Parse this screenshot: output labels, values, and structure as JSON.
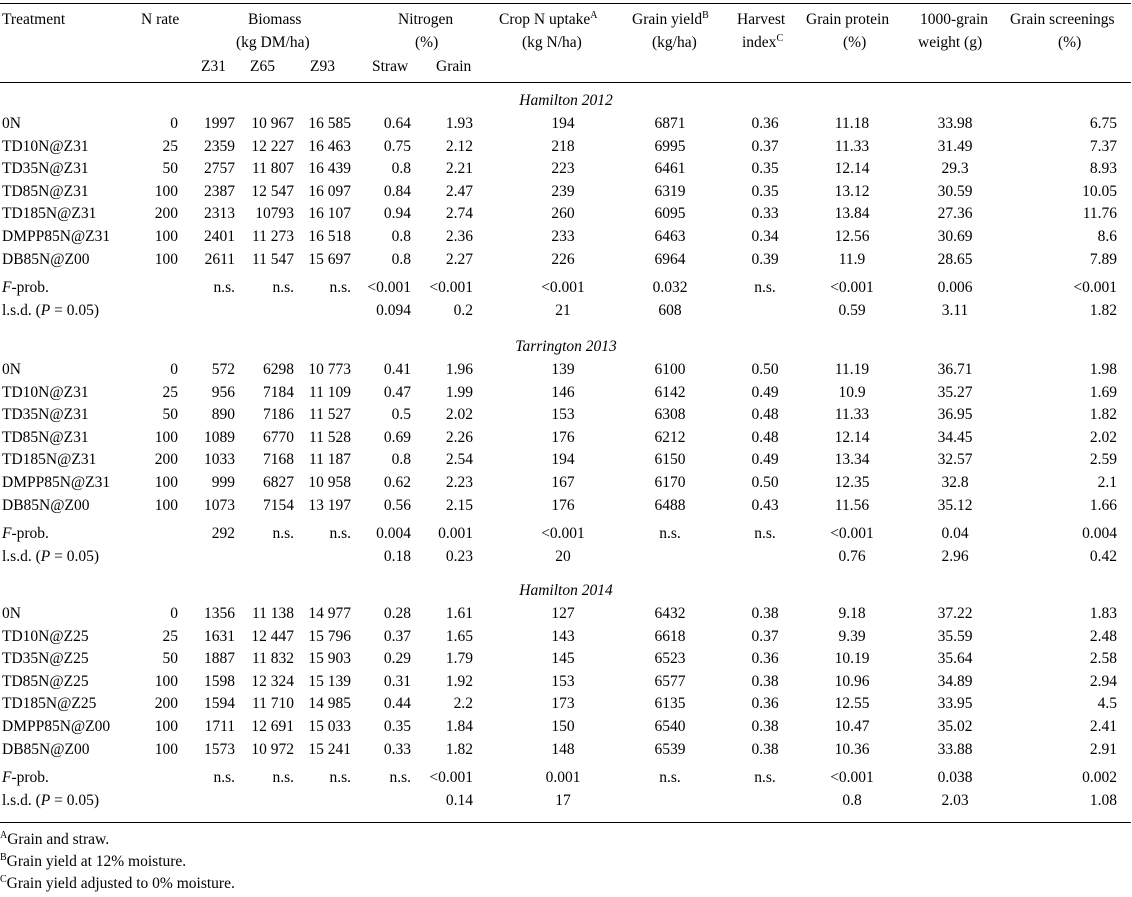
{
  "header": {
    "treatment": "Treatment",
    "n_rate": "N rate",
    "biomass": "Biomass",
    "biomass_unit": "(kg DM/ha)",
    "z31": "Z31",
    "z65": "Z65",
    "z93": "Z93",
    "nitrogen": "Nitrogen",
    "nitrogen_unit": "(%)",
    "straw": "Straw",
    "grain": "Grain",
    "crop_n": "Crop N uptake",
    "crop_n_sup": "A",
    "crop_n_unit": "(kg N/ha)",
    "grain_yield": "Grain yield",
    "grain_yield_sup": "B",
    "grain_yield_unit": "(kg/ha)",
    "harvest": "Harvest",
    "harvest_index": "index",
    "harvest_sup": "C",
    "grain_protein": "Grain protein",
    "grain_protein_unit": "(%)",
    "tgw": "1000-grain",
    "tgw_unit": "weight (g)",
    "screenings": "Grain screenings",
    "screenings_unit": "(%)"
  },
  "sections": [
    {
      "title": "Hamilton 2012",
      "rows": [
        [
          "0N",
          "0",
          "1997",
          "10 967",
          "16 585",
          "0.64",
          "1.93",
          "194",
          "6871",
          "0.36",
          "11.18",
          "33.98",
          "6.75"
        ],
        [
          "TD10N@Z31",
          "25",
          "2359",
          "12 227",
          "16 463",
          "0.75",
          "2.12",
          "218",
          "6995",
          "0.37",
          "11.33",
          "31.49",
          "7.37"
        ],
        [
          "TD35N@Z31",
          "50",
          "2757",
          "11 807",
          "16 439",
          "0.8",
          "2.21",
          "223",
          "6461",
          "0.35",
          "12.14",
          "29.3",
          "8.93"
        ],
        [
          "TD85N@Z31",
          "100",
          "2387",
          "12 547",
          "16 097",
          "0.84",
          "2.47",
          "239",
          "6319",
          "0.35",
          "13.12",
          "30.59",
          "10.05"
        ],
        [
          "TD185N@Z31",
          "200",
          "2313",
          "10793",
          "16 107",
          "0.94",
          "2.74",
          "260",
          "6095",
          "0.33",
          "13.84",
          "27.36",
          "11.76"
        ],
        [
          "DMPP85N@Z31",
          "100",
          "2401",
          "11 273",
          "16 518",
          "0.8",
          "2.36",
          "233",
          "6463",
          "0.34",
          "12.56",
          "30.69",
          "8.6"
        ],
        [
          "DB85N@Z00",
          "100",
          "2611",
          "11 547",
          "15 697",
          "0.8",
          "2.27",
          "226",
          "6964",
          "0.39",
          "11.9",
          "28.65",
          "7.89"
        ]
      ],
      "fprob": [
        "F-prob.",
        "",
        "n.s.",
        "n.s.",
        "n.s.",
        "<0.001",
        "<0.001",
        "<0.001",
        "0.032",
        "n.s.",
        "<0.001",
        "0.006",
        "<0.001"
      ],
      "lsd": [
        "l.s.d. (P = 0.05)",
        "",
        "",
        "",
        "",
        "0.094",
        "0.2",
        "21",
        "608",
        "",
        "0.59",
        "3.11",
        "1.82"
      ]
    },
    {
      "title": "Tarrington 2013",
      "rows": [
        [
          "0N",
          "0",
          "572",
          "6298",
          "10 773",
          "0.41",
          "1.96",
          "139",
          "6100",
          "0.50",
          "11.19",
          "36.71",
          "1.98"
        ],
        [
          "TD10N@Z31",
          "25",
          "956",
          "7184",
          "11 109",
          "0.47",
          "1.99",
          "146",
          "6142",
          "0.49",
          "10.9",
          "35.27",
          "1.69"
        ],
        [
          "TD35N@Z31",
          "50",
          "890",
          "7186",
          "11 527",
          "0.5",
          "2.02",
          "153",
          "6308",
          "0.48",
          "11.33",
          "36.95",
          "1.82"
        ],
        [
          "TD85N@Z31",
          "100",
          "1089",
          "6770",
          "11 528",
          "0.69",
          "2.26",
          "176",
          "6212",
          "0.48",
          "12.14",
          "34.45",
          "2.02"
        ],
        [
          "TD185N@Z31",
          "200",
          "1033",
          "7168",
          "11 187",
          "0.8",
          "2.54",
          "194",
          "6150",
          "0.49",
          "13.34",
          "32.57",
          "2.59"
        ],
        [
          "DMPP85N@Z31",
          "100",
          "999",
          "6827",
          "10 958",
          "0.62",
          "2.23",
          "167",
          "6170",
          "0.50",
          "12.35",
          "32.8",
          "2.1"
        ],
        [
          "DB85N@Z00",
          "100",
          "1073",
          "7154",
          "13 197",
          "0.56",
          "2.15",
          "176",
          "6488",
          "0.43",
          "11.56",
          "35.12",
          "1.66"
        ]
      ],
      "fprob": [
        "F-prob.",
        "",
        "292",
        "n.s.",
        "n.s.",
        "0.004",
        "0.001",
        "<0.001",
        "n.s.",
        "n.s.",
        "<0.001",
        "0.04",
        "0.004"
      ],
      "lsd": [
        "l.s.d. (P = 0.05)",
        "",
        "",
        "",
        "",
        "0.18",
        "0.23",
        "20",
        "",
        "",
        "0.76",
        "2.96",
        "0.42"
      ]
    },
    {
      "title": "Hamilton 2014",
      "rows": [
        [
          "0N",
          "0",
          "1356",
          "11 138",
          "14 977",
          "0.28",
          "1.61",
          "127",
          "6432",
          "0.38",
          "9.18",
          "37.22",
          "1.83"
        ],
        [
          "TD10N@Z25",
          "25",
          "1631",
          "12 447",
          "15 796",
          "0.37",
          "1.65",
          "143",
          "6618",
          "0.37",
          "9.39",
          "35.59",
          "2.48"
        ],
        [
          "TD35N@Z25",
          "50",
          "1887",
          "11 832",
          "15 903",
          "0.29",
          "1.79",
          "145",
          "6523",
          "0.36",
          "10.19",
          "35.64",
          "2.58"
        ],
        [
          "TD85N@Z25",
          "100",
          "1598",
          "12 324",
          "15 139",
          "0.31",
          "1.92",
          "153",
          "6577",
          "0.38",
          "10.96",
          "34.89",
          "2.94"
        ],
        [
          "TD185N@Z25",
          "200",
          "1594",
          "11 710",
          "14 985",
          "0.44",
          "2.2",
          "173",
          "6135",
          "0.36",
          "12.55",
          "33.95",
          "4.5"
        ],
        [
          "DMPP85N@Z00",
          "100",
          "1711",
          "12 691",
          "15 033",
          "0.35",
          "1.84",
          "150",
          "6540",
          "0.38",
          "10.47",
          "35.02",
          "2.41"
        ],
        [
          "DB85N@Z00",
          "100",
          "1573",
          "10 972",
          "15 241",
          "0.33",
          "1.82",
          "148",
          "6539",
          "0.38",
          "10.36",
          "33.88",
          "2.91"
        ]
      ],
      "fprob": [
        "F-prob.",
        "",
        "n.s.",
        "n.s.",
        "n.s.",
        "n.s.",
        "<0.001",
        "0.001",
        "n.s.",
        "n.s.",
        "<0.001",
        "0.038",
        "0.002"
      ],
      "lsd": [
        "l.s.d. (P = 0.05)",
        "",
        "",
        "",
        "",
        "",
        "0.14",
        "17",
        "",
        "",
        "0.8",
        "2.03",
        "1.08"
      ]
    }
  ],
  "footnotes": [
    {
      "mark": "A",
      "text": "Grain and straw."
    },
    {
      "mark": "B",
      "text": "Grain yield at 12% moisture."
    },
    {
      "mark": "C",
      "text": "Grain yield adjusted to 0% moisture."
    }
  ]
}
